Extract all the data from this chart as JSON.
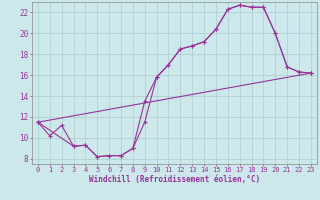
{
  "background_color": "#cce8ea",
  "grid_color": "#aacccc",
  "line_color": "#993399",
  "xlabel": "Windchill (Refroidissement éolien,°C)",
  "xlim": [
    -0.5,
    23.5
  ],
  "ylim": [
    7.5,
    23.0
  ],
  "xticks": [
    0,
    1,
    2,
    3,
    4,
    5,
    6,
    7,
    8,
    9,
    10,
    11,
    12,
    13,
    14,
    15,
    16,
    17,
    18,
    19,
    20,
    21,
    22,
    23
  ],
  "yticks": [
    8,
    10,
    12,
    14,
    16,
    18,
    20,
    22
  ],
  "line1": {
    "x": [
      0,
      1,
      2,
      3,
      4,
      5,
      6,
      7,
      8,
      9,
      10,
      11,
      12,
      13,
      14,
      15,
      16,
      17,
      18,
      19,
      20,
      21,
      22,
      23
    ],
    "y": [
      11.5,
      10.2,
      11.2,
      9.2,
      9.3,
      8.2,
      8.3,
      8.3,
      9.0,
      11.5,
      15.8,
      17.0,
      18.5,
      18.8,
      19.2,
      20.4,
      22.3,
      22.7,
      22.5,
      22.5,
      20.0,
      16.8,
      16.3,
      16.2
    ]
  },
  "line2": {
    "x": [
      0,
      3,
      4,
      5,
      6,
      7,
      8,
      9,
      10,
      11,
      12,
      13,
      14,
      15,
      16,
      17,
      18,
      19,
      20,
      21,
      22,
      23
    ],
    "y": [
      11.5,
      9.2,
      9.3,
      8.2,
      8.3,
      8.3,
      9.0,
      13.5,
      15.8,
      17.0,
      18.5,
      18.8,
      19.2,
      20.4,
      22.3,
      22.7,
      22.5,
      22.5,
      20.0,
      16.8,
      16.3,
      16.2
    ]
  },
  "line3": {
    "x": [
      0,
      23
    ],
    "y": [
      11.5,
      16.2
    ]
  }
}
